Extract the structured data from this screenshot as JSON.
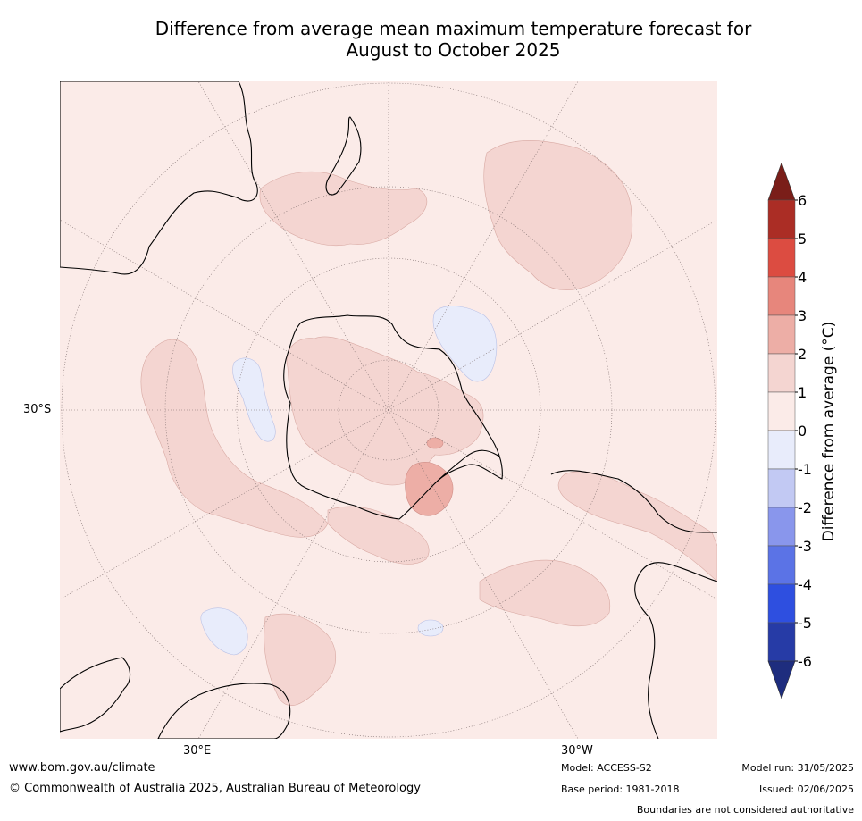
{
  "title": {
    "line1": "Difference from average mean maximum temperature forecast for",
    "line2": "August to October 2025"
  },
  "map": {
    "projection": "South polar stereographic",
    "background_category": "0 to 1",
    "lat_labels": [
      "30°S"
    ],
    "lon_labels": [
      "30°E",
      "30°W"
    ],
    "features": [
      "Antarctica",
      "Australia",
      "New Zealand",
      "South America",
      "Southern Africa"
    ],
    "anomaly_regions": [
      {
        "description": "Antarctic plateau",
        "category": "1 to 2"
      },
      {
        "description": "Weddell Sea near Antarctic Peninsula",
        "category": "2 to 3"
      },
      {
        "description": "Ross Sea / Amundsen Sea area",
        "category": "-1 to 0"
      },
      {
        "description": "Southern Indian Ocean west of Australia",
        "category": "-1 to 0"
      },
      {
        "description": "Southern Indian Ocean near Africa",
        "category": "-1 to 0"
      },
      {
        "description": "South Pacific east of New Zealand",
        "category": "1 to 2"
      },
      {
        "description": "South Atlantic",
        "category": "1 to 2"
      },
      {
        "description": "Southern South America",
        "category": "1 to 2"
      }
    ]
  },
  "colorbar": {
    "title": "Difference from average (°C)",
    "ticks": [
      "6",
      "5",
      "4",
      "3",
      "2",
      "1",
      "0",
      "-1",
      "-2",
      "-3",
      "-4",
      "-5",
      "-6"
    ],
    "colors": {
      "above_max": "#7a1e19",
      "5_to_6": "#ab2d25",
      "4_to_5": "#dc4c41",
      "3_to_4": "#e7867c",
      "2_to_3": "#edaea6",
      "1_to_2": "#f4d5d1",
      "0_to_1": "#fbebe8",
      "-1_to_0": "#e8ecfb",
      "-2_to_-1": "#c2c9f3",
      "-3_to_-2": "#8996ec",
      "-4_to_-3": "#5b73e6",
      "-5_to_-4": "#2e4fe0",
      "-6_to_-5": "#263ba6",
      "below_min": "#1e2d7e"
    }
  },
  "footer": {
    "url": "www.bom.gov.au/climate",
    "copyright": "© Commonwealth of Australia 2025, Australian Bureau of Meteorology",
    "model": "Model: ACCESS-S2",
    "base_period": "Base period: 1981-2018",
    "model_run": "Model run: 31/05/2025",
    "issued": "Issued: 02/06/2025",
    "boundaries": "Boundaries are not considered authoritative"
  }
}
